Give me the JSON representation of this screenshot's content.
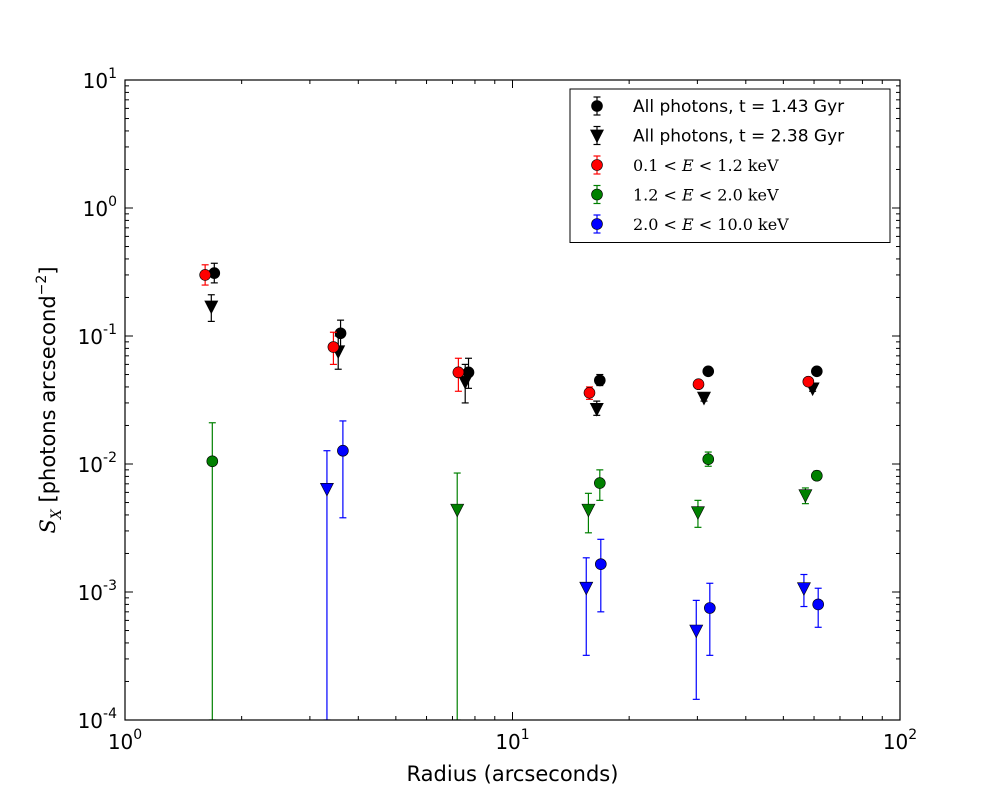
{
  "chart_data": {
    "type": "scatter",
    "xscale": "log",
    "yscale": "log",
    "xlim": [
      1,
      100
    ],
    "ylim": [
      0.0001,
      10
    ],
    "xlabel": "Radius (arcseconds)",
    "ylabel": {
      "symbol": "S",
      "subscript": "X",
      "units_open": "[photons arcsecond",
      "units_exp": "−2",
      "units_close": "]"
    },
    "x_ticks": [
      {
        "value": 1,
        "base": "10",
        "exp": "0"
      },
      {
        "value": 10,
        "base": "10",
        "exp": "1"
      },
      {
        "value": 100,
        "base": "10",
        "exp": "2"
      }
    ],
    "y_ticks": [
      {
        "value": 0.0001,
        "base": "10",
        "exp": "-4"
      },
      {
        "value": 0.001,
        "base": "10",
        "exp": "-3"
      },
      {
        "value": 0.01,
        "base": "10",
        "exp": "-2"
      },
      {
        "value": 0.1,
        "base": "10",
        "exp": "-1"
      },
      {
        "value": 1,
        "base": "10",
        "exp": "0"
      },
      {
        "value": 10,
        "base": "10",
        "exp": "1"
      }
    ],
    "legend_position": "top-right",
    "series": [
      {
        "name": "All photons, t = 1.43 Gyr",
        "legend_kind": "plain",
        "color": "#000000",
        "marker": "circle",
        "points": [
          {
            "x": 1.7,
            "y": 0.31,
            "ylo": 0.26,
            "yhi": 0.37
          },
          {
            "x": 3.6,
            "y": 0.105,
            "ylo": 0.082,
            "yhi": 0.133
          },
          {
            "x": 7.7,
            "y": 0.052,
            "ylo": 0.039,
            "yhi": 0.067
          },
          {
            "x": 16.8,
            "y": 0.045,
            "ylo": 0.041,
            "yhi": 0.05
          },
          {
            "x": 32.0,
            "y": 0.053,
            "ylo": 0.05,
            "yhi": 0.057
          },
          {
            "x": 61.0,
            "y": 0.053,
            "ylo": 0.05,
            "yhi": 0.056
          }
        ]
      },
      {
        "name": "All photons, t = 2.38 Gyr",
        "legend_kind": "plain",
        "color": "#000000",
        "marker": "triangle-down",
        "points": [
          {
            "x": 1.67,
            "y": 0.17,
            "ylo": 0.13,
            "yhi": 0.21
          },
          {
            "x": 3.55,
            "y": 0.076,
            "ylo": 0.055,
            "yhi": 0.1
          },
          {
            "x": 7.55,
            "y": 0.044,
            "ylo": 0.03,
            "yhi": 0.06
          },
          {
            "x": 16.5,
            "y": 0.027,
            "ylo": 0.024,
            "yhi": 0.031
          },
          {
            "x": 31.2,
            "y": 0.033,
            "ylo": 0.031,
            "yhi": 0.036
          },
          {
            "x": 59.5,
            "y": 0.039,
            "ylo": 0.037,
            "yhi": 0.041
          }
        ]
      },
      {
        "name": "0.1 < E < 1.2 keV",
        "legend_kind": "math",
        "legend_parts": [
          "0.1",
          "<",
          "E",
          "<",
          "1.2 keV"
        ],
        "color": "#ff0000",
        "marker": "circle",
        "points": [
          {
            "x": 1.61,
            "y": 0.3,
            "ylo": 0.25,
            "yhi": 0.36
          },
          {
            "x": 3.45,
            "y": 0.082,
            "ylo": 0.06,
            "yhi": 0.107
          },
          {
            "x": 7.25,
            "y": 0.052,
            "ylo": 0.037,
            "yhi": 0.067
          },
          {
            "x": 15.8,
            "y": 0.036,
            "ylo": 0.032,
            "yhi": 0.04
          },
          {
            "x": 30.2,
            "y": 0.042,
            "ylo": 0.04,
            "yhi": 0.044
          },
          {
            "x": 58.0,
            "y": 0.044,
            "ylo": 0.042,
            "yhi": 0.046
          }
        ]
      },
      {
        "name": "1.2 < E < 2.0 keV",
        "legend_kind": "math",
        "legend_parts": [
          "1.2",
          "<",
          "E",
          "<",
          "2.0 keV"
        ],
        "color": "#008000",
        "marker": "circle",
        "points": [
          {
            "x": 1.68,
            "y": 0.0105,
            "ylo": 0.0001,
            "yhi": 0.021
          },
          {
            "x": 16.8,
            "y": 0.0071,
            "ylo": 0.0052,
            "yhi": 0.009
          },
          {
            "x": 32.0,
            "y": 0.0109,
            "ylo": 0.0096,
            "yhi": 0.0124
          },
          {
            "x": 61.0,
            "y": 0.0081,
            "ylo": 0.0075,
            "yhi": 0.0088
          }
        ]
      },
      {
        "name": "1.2 < E < 2.0 keV (t = 2.38 Gyr)",
        "legend_kind": "none",
        "color": "#008000",
        "marker": "triangle-down",
        "points": [
          {
            "x": 7.2,
            "y": 0.0044,
            "ylo": 0.0001,
            "yhi": 0.0085
          },
          {
            "x": 15.7,
            "y": 0.0044,
            "ylo": 0.0029,
            "yhi": 0.0059
          },
          {
            "x": 30.1,
            "y": 0.0042,
            "ylo": 0.0032,
            "yhi": 0.0052
          },
          {
            "x": 57.0,
            "y": 0.0057,
            "ylo": 0.0049,
            "yhi": 0.0065
          }
        ]
      },
      {
        "name": "2.0 < E < 10.0 keV",
        "legend_kind": "math",
        "legend_parts": [
          "2.0",
          "<",
          "E",
          "<",
          "10.0 keV"
        ],
        "color": "#0000ff",
        "marker": "circle",
        "points": [
          {
            "x": 3.65,
            "y": 0.0127,
            "ylo": 0.0038,
            "yhi": 0.0217
          },
          {
            "x": 16.9,
            "y": 0.00165,
            "ylo": 0.0007,
            "yhi": 0.00258
          },
          {
            "x": 32.3,
            "y": 0.00075,
            "ylo": 0.00032,
            "yhi": 0.00117
          },
          {
            "x": 61.5,
            "y": 0.0008,
            "ylo": 0.00053,
            "yhi": 0.00107
          }
        ]
      },
      {
        "name": "2.0 < E < 10.0 keV (t = 2.38 Gyr)",
        "legend_kind": "none",
        "color": "#0000ff",
        "marker": "triangle-down",
        "points": [
          {
            "x": 3.32,
            "y": 0.0064,
            "ylo": 0.0001,
            "yhi": 0.0127
          },
          {
            "x": 15.5,
            "y": 0.00108,
            "ylo": 0.00032,
            "yhi": 0.00185
          },
          {
            "x": 29.8,
            "y": 0.0005,
            "ylo": 0.000145,
            "yhi": 0.00086
          },
          {
            "x": 56.5,
            "y": 0.00107,
            "ylo": 0.00077,
            "yhi": 0.00137
          }
        ]
      }
    ]
  }
}
